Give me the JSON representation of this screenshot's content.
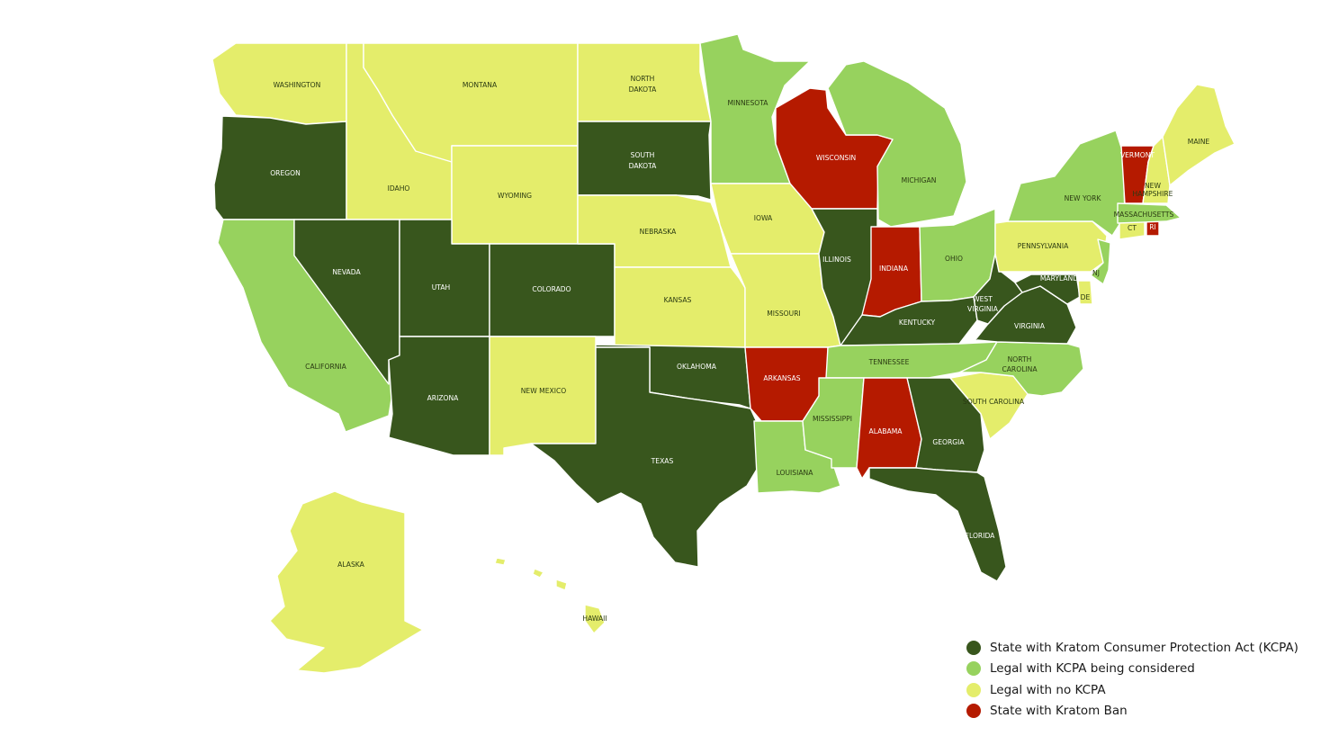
{
  "colors": {
    "kcpa": "#38561d",
    "considered": "#97d25e",
    "no_kcpa": "#e4ed6b",
    "ban": "#b51a00"
  },
  "states": [
    {
      "id": "WA",
      "name": "WASHINGTON",
      "status": "no_kcpa"
    },
    {
      "id": "OR",
      "name": "OREGON",
      "status": "kcpa"
    },
    {
      "id": "CA",
      "name": "CALIFORNIA",
      "status": "considered"
    },
    {
      "id": "ID",
      "name": "IDAHO",
      "status": "no_kcpa"
    },
    {
      "id": "NV",
      "name": "NEVADA",
      "status": "kcpa"
    },
    {
      "id": "MT",
      "name": "MONTANA",
      "status": "no_kcpa"
    },
    {
      "id": "WY",
      "name": "WYOMING",
      "status": "no_kcpa"
    },
    {
      "id": "UT",
      "name": "UTAH",
      "status": "kcpa"
    },
    {
      "id": "AZ",
      "name": "ARIZONA",
      "status": "kcpa"
    },
    {
      "id": "CO",
      "name": "COLORADO",
      "status": "kcpa"
    },
    {
      "id": "NM",
      "name": "NEW MEXICO",
      "status": "no_kcpa"
    },
    {
      "id": "ND",
      "name": "NORTH DAKOTA",
      "status": "no_kcpa"
    },
    {
      "id": "SD",
      "name": "SOUTH DAKOTA",
      "status": "kcpa"
    },
    {
      "id": "NE",
      "name": "NEBRASKA",
      "status": "no_kcpa"
    },
    {
      "id": "KS",
      "name": "KANSAS",
      "status": "no_kcpa"
    },
    {
      "id": "OK",
      "name": "OKLAHOMA",
      "status": "kcpa"
    },
    {
      "id": "TX",
      "name": "TEXAS",
      "status": "kcpa"
    },
    {
      "id": "MN",
      "name": "MINNESOTA",
      "status": "considered"
    },
    {
      "id": "IA",
      "name": "IOWA",
      "status": "no_kcpa"
    },
    {
      "id": "MO",
      "name": "MISSOURI",
      "status": "no_kcpa"
    },
    {
      "id": "AR",
      "name": "ARKANSAS",
      "status": "ban"
    },
    {
      "id": "LA",
      "name": "LOUISIANA",
      "status": "considered"
    },
    {
      "id": "WI",
      "name": "WISCONSIN",
      "status": "ban"
    },
    {
      "id": "IL",
      "name": "ILLINOIS",
      "status": "kcpa"
    },
    {
      "id": "MI",
      "name": "MICHIGAN",
      "status": "considered"
    },
    {
      "id": "IN",
      "name": "INDIANA",
      "status": "ban"
    },
    {
      "id": "OH",
      "name": "OHIO",
      "status": "considered"
    },
    {
      "id": "KY",
      "name": "KENTUCKY",
      "status": "kcpa"
    },
    {
      "id": "TN",
      "name": "TENNESSEE",
      "status": "considered"
    },
    {
      "id": "MS",
      "name": "MISSISSIPPI",
      "status": "considered"
    },
    {
      "id": "AL",
      "name": "ALABAMA",
      "status": "ban"
    },
    {
      "id": "GA",
      "name": "GEORGIA",
      "status": "kcpa"
    },
    {
      "id": "FL",
      "name": "FLORIDA",
      "status": "kcpa"
    },
    {
      "id": "SC",
      "name": "SOUTH CAROLINA",
      "status": "no_kcpa"
    },
    {
      "id": "NC",
      "name": "NORTH CAROLINA",
      "status": "considered"
    },
    {
      "id": "VA",
      "name": "VIRGINIA",
      "status": "kcpa"
    },
    {
      "id": "WV",
      "name": "WEST VIRGINIA",
      "status": "kcpa"
    },
    {
      "id": "MD",
      "name": "MARYLAND",
      "status": "kcpa"
    },
    {
      "id": "DE",
      "name": "DE",
      "status": "no_kcpa"
    },
    {
      "id": "PA",
      "name": "PENNSYLVANIA",
      "status": "no_kcpa"
    },
    {
      "id": "NJ",
      "name": "NJ",
      "status": "considered"
    },
    {
      "id": "NY",
      "name": "NEW YORK",
      "status": "considered"
    },
    {
      "id": "CT",
      "name": "CT",
      "status": "no_kcpa"
    },
    {
      "id": "RI",
      "name": "RI",
      "status": "ban"
    },
    {
      "id": "MA",
      "name": "MASSACHUSETTS",
      "status": "considered"
    },
    {
      "id": "VT",
      "name": "VERMONT",
      "status": "ban"
    },
    {
      "id": "NH",
      "name": "NEW HAMPSHIRE",
      "status": "no_kcpa"
    },
    {
      "id": "ME",
      "name": "MAINE",
      "status": "no_kcpa"
    },
    {
      "id": "AK",
      "name": "ALASKA",
      "status": "no_kcpa"
    },
    {
      "id": "HI",
      "name": "HAWAII",
      "status": "no_kcpa"
    }
  ],
  "legend": [
    {
      "status": "kcpa",
      "label": "State with Kratom Consumer Protection Act (KCPA)"
    },
    {
      "status": "considered",
      "label": "Legal with KCPA being considered"
    },
    {
      "status": "no_kcpa",
      "label": "Legal with no KCPA"
    },
    {
      "status": "ban",
      "label": "State with Kratom Ban"
    }
  ]
}
